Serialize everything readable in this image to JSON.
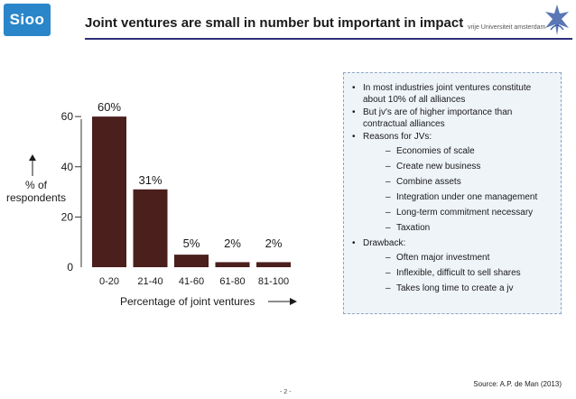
{
  "header": {
    "logo_text": "Sioo",
    "title": "Joint ventures are small in number but important in impact",
    "university_name": "vrije Universiteit  amsterdam"
  },
  "chart_data": {
    "type": "bar",
    "categories": [
      "0-20",
      "21-40",
      "41-60",
      "61-80",
      "81-100"
    ],
    "values": [
      60,
      31,
      5,
      2,
      2
    ],
    "data_labels": [
      "60%",
      "31%",
      "5%",
      "2%",
      "2%"
    ],
    "xlabel": "Percentage of joint ventures",
    "ylabel": "% of respondents",
    "ylim": [
      0,
      64
    ],
    "yticks": [
      0,
      20,
      40,
      60
    ],
    "bar_color": "#4a1f1c",
    "grid": false
  },
  "panel": {
    "items": [
      {
        "text": "In most industries joint ventures constitute about 10% of all alliances",
        "sub": []
      },
      {
        "text": "But jv's are of higher importance than contractual alliances",
        "sub": []
      },
      {
        "text": "Reasons for JVs:",
        "sub": [
          "Economies of scale",
          "Create new business",
          "Combine assets",
          "Integration under one management",
          "Long-term commitment necessary",
          "Taxation"
        ]
      },
      {
        "text": "Drawback:",
        "sub": [
          "Often major investment",
          "Inflexible, difficult to sell shares",
          "Takes long time to create a jv"
        ]
      }
    ]
  },
  "footer": {
    "source": "Source: A.P. de Man (2013)",
    "page": "- 2 -"
  },
  "colors": {
    "accent": "#2a86c9",
    "title_rule": "#2f2f7a",
    "panel_bg": "#eff4f9"
  }
}
